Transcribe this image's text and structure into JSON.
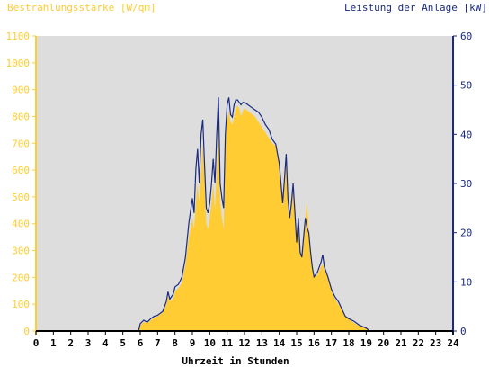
{
  "chart_data": {
    "type": "area",
    "left_axis_title": "Bestrahlungsstärke [W/qm]",
    "right_axis_title": "Leistung der Anlage [kW]",
    "xlabel": "Uhrzeit in Stunden",
    "xlim": [
      0,
      24
    ],
    "y_left_lim": [
      0,
      1100
    ],
    "y_right_lim": [
      0,
      60
    ],
    "x_ticks": [
      "0",
      "1",
      "2",
      "3",
      "4",
      "5",
      "6",
      "7",
      "8",
      "9",
      "10",
      "11",
      "12",
      "13",
      "14",
      "15",
      "16",
      "17",
      "18",
      "19",
      "20",
      "21",
      "22",
      "23",
      "24"
    ],
    "y_left_ticks": [
      "0",
      "100",
      "200",
      "300",
      "400",
      "500",
      "600",
      "700",
      "800",
      "900",
      "1000",
      "1100"
    ],
    "y_right_ticks": [
      "0",
      "10",
      "20",
      "30",
      "40",
      "50",
      "60"
    ],
    "colors": {
      "irradiance": "#ffcc33",
      "power": "#1a2a80",
      "plot_bg": "#dddddd"
    },
    "series": [
      {
        "name": "Bestrahlungsstärke [W/qm]",
        "unit": "W/qm",
        "points": [
          [
            0,
            0
          ],
          [
            5.9,
            0
          ],
          [
            6.0,
            20
          ],
          [
            6.2,
            35
          ],
          [
            6.4,
            30
          ],
          [
            6.6,
            40
          ],
          [
            6.8,
            50
          ],
          [
            7.0,
            55
          ],
          [
            7.3,
            70
          ],
          [
            7.5,
            100
          ],
          [
            7.6,
            130
          ],
          [
            7.7,
            110
          ],
          [
            7.9,
            120
          ],
          [
            8.0,
            150
          ],
          [
            8.2,
            160
          ],
          [
            8.4,
            180
          ],
          [
            8.6,
            250
          ],
          [
            8.8,
            350
          ],
          [
            9.0,
            420
          ],
          [
            9.1,
            380
          ],
          [
            9.2,
            480
          ],
          [
            9.3,
            550
          ],
          [
            9.4,
            480
          ],
          [
            9.5,
            600
          ],
          [
            9.6,
            700
          ],
          [
            9.7,
            550
          ],
          [
            9.8,
            400
          ],
          [
            9.9,
            380
          ],
          [
            10.0,
            420
          ],
          [
            10.1,
            480
          ],
          [
            10.2,
            550
          ],
          [
            10.3,
            450
          ],
          [
            10.4,
            600
          ],
          [
            10.5,
            720
          ],
          [
            10.6,
            480
          ],
          [
            10.7,
            420
          ],
          [
            10.8,
            380
          ],
          [
            10.9,
            700
          ],
          [
            11.0,
            790
          ],
          [
            11.1,
            820
          ],
          [
            11.2,
            780
          ],
          [
            11.3,
            770
          ],
          [
            11.4,
            800
          ],
          [
            11.5,
            830
          ],
          [
            11.6,
            840
          ],
          [
            11.7,
            830
          ],
          [
            11.8,
            800
          ],
          [
            11.9,
            820
          ],
          [
            12.0,
            830
          ],
          [
            12.2,
            820
          ],
          [
            12.4,
            810
          ],
          [
            12.6,
            800
          ],
          [
            12.8,
            780
          ],
          [
            13.0,
            760
          ],
          [
            13.2,
            740
          ],
          [
            13.4,
            720
          ],
          [
            13.6,
            700
          ],
          [
            13.8,
            690
          ],
          [
            14.0,
            620
          ],
          [
            14.1,
            540
          ],
          [
            14.2,
            460
          ],
          [
            14.3,
            550
          ],
          [
            14.4,
            650
          ],
          [
            14.5,
            500
          ],
          [
            14.6,
            420
          ],
          [
            14.7,
            480
          ],
          [
            14.8,
            550
          ],
          [
            14.9,
            450
          ],
          [
            15.0,
            330
          ],
          [
            15.1,
            420
          ],
          [
            15.2,
            300
          ],
          [
            15.3,
            280
          ],
          [
            15.4,
            350
          ],
          [
            15.5,
            420
          ],
          [
            15.6,
            480
          ],
          [
            15.7,
            380
          ],
          [
            15.8,
            300
          ],
          [
            15.9,
            250
          ],
          [
            16.0,
            200
          ],
          [
            16.2,
            210
          ],
          [
            16.4,
            240
          ],
          [
            16.5,
            250
          ],
          [
            16.6,
            230
          ],
          [
            16.8,
            200
          ],
          [
            17.0,
            150
          ],
          [
            17.2,
            120
          ],
          [
            17.4,
            100
          ],
          [
            17.6,
            80
          ],
          [
            17.8,
            55
          ],
          [
            18.0,
            45
          ],
          [
            18.3,
            30
          ],
          [
            18.6,
            20
          ],
          [
            19.0,
            10
          ],
          [
            19.2,
            0
          ],
          [
            24,
            0
          ]
        ]
      },
      {
        "name": "Leistung der Anlage [kW]",
        "unit": "kW",
        "points": [
          [
            0,
            0
          ],
          [
            5.9,
            0
          ],
          [
            6.0,
            1.5
          ],
          [
            6.2,
            2.2
          ],
          [
            6.4,
            1.8
          ],
          [
            6.6,
            2.5
          ],
          [
            6.8,
            3.0
          ],
          [
            7.0,
            3.2
          ],
          [
            7.3,
            4.0
          ],
          [
            7.5,
            6.0
          ],
          [
            7.6,
            8.0
          ],
          [
            7.7,
            6.5
          ],
          [
            7.9,
            7.5
          ],
          [
            8.0,
            9.0
          ],
          [
            8.2,
            9.5
          ],
          [
            8.4,
            11.0
          ],
          [
            8.6,
            15.0
          ],
          [
            8.8,
            22.0
          ],
          [
            9.0,
            27.0
          ],
          [
            9.1,
            24.0
          ],
          [
            9.2,
            33.0
          ],
          [
            9.3,
            37.0
          ],
          [
            9.4,
            30.0
          ],
          [
            9.5,
            40.0
          ],
          [
            9.6,
            43.0
          ],
          [
            9.7,
            34.0
          ],
          [
            9.8,
            25.0
          ],
          [
            9.9,
            24.0
          ],
          [
            10.0,
            26.0
          ],
          [
            10.1,
            30.0
          ],
          [
            10.2,
            35.0
          ],
          [
            10.3,
            30.0
          ],
          [
            10.4,
            40.0
          ],
          [
            10.5,
            47.5
          ],
          [
            10.6,
            30.0
          ],
          [
            10.7,
            27.0
          ],
          [
            10.8,
            25.0
          ],
          [
            10.9,
            40.0
          ],
          [
            11.0,
            46.0
          ],
          [
            11.1,
            47.5
          ],
          [
            11.2,
            44.0
          ],
          [
            11.3,
            43.5
          ],
          [
            11.4,
            46.0
          ],
          [
            11.5,
            47.0
          ],
          [
            11.6,
            47.0
          ],
          [
            11.7,
            46.5
          ],
          [
            11.8,
            46.0
          ],
          [
            11.9,
            46.5
          ],
          [
            12.0,
            46.5
          ],
          [
            12.2,
            46.0
          ],
          [
            12.4,
            45.5
          ],
          [
            12.6,
            45.0
          ],
          [
            12.8,
            44.5
          ],
          [
            13.0,
            43.5
          ],
          [
            13.2,
            42.0
          ],
          [
            13.4,
            41.0
          ],
          [
            13.6,
            39.0
          ],
          [
            13.8,
            38.0
          ],
          [
            14.0,
            34.0
          ],
          [
            14.1,
            30.0
          ],
          [
            14.2,
            26.0
          ],
          [
            14.3,
            31.0
          ],
          [
            14.4,
            36.0
          ],
          [
            14.5,
            27.0
          ],
          [
            14.6,
            23.0
          ],
          [
            14.7,
            26.0
          ],
          [
            14.8,
            30.0
          ],
          [
            14.9,
            24.0
          ],
          [
            15.0,
            18.0
          ],
          [
            15.1,
            23.0
          ],
          [
            15.2,
            16.0
          ],
          [
            15.3,
            15.0
          ],
          [
            15.4,
            19.0
          ],
          [
            15.5,
            23.0
          ],
          [
            15.6,
            21.0
          ],
          [
            15.7,
            20.0
          ],
          [
            15.8,
            16.0
          ],
          [
            15.9,
            13.0
          ],
          [
            16.0,
            11.0
          ],
          [
            16.2,
            12.0
          ],
          [
            16.4,
            14.0
          ],
          [
            16.5,
            15.5
          ],
          [
            16.6,
            13.0
          ],
          [
            16.8,
            11.0
          ],
          [
            17.0,
            8.5
          ],
          [
            17.2,
            7.0
          ],
          [
            17.4,
            6.0
          ],
          [
            17.6,
            4.5
          ],
          [
            17.8,
            3.0
          ],
          [
            18.0,
            2.5
          ],
          [
            18.3,
            2.0
          ],
          [
            18.6,
            1.2
          ],
          [
            19.0,
            0.6
          ],
          [
            19.2,
            0
          ],
          [
            24,
            0
          ]
        ]
      }
    ]
  }
}
